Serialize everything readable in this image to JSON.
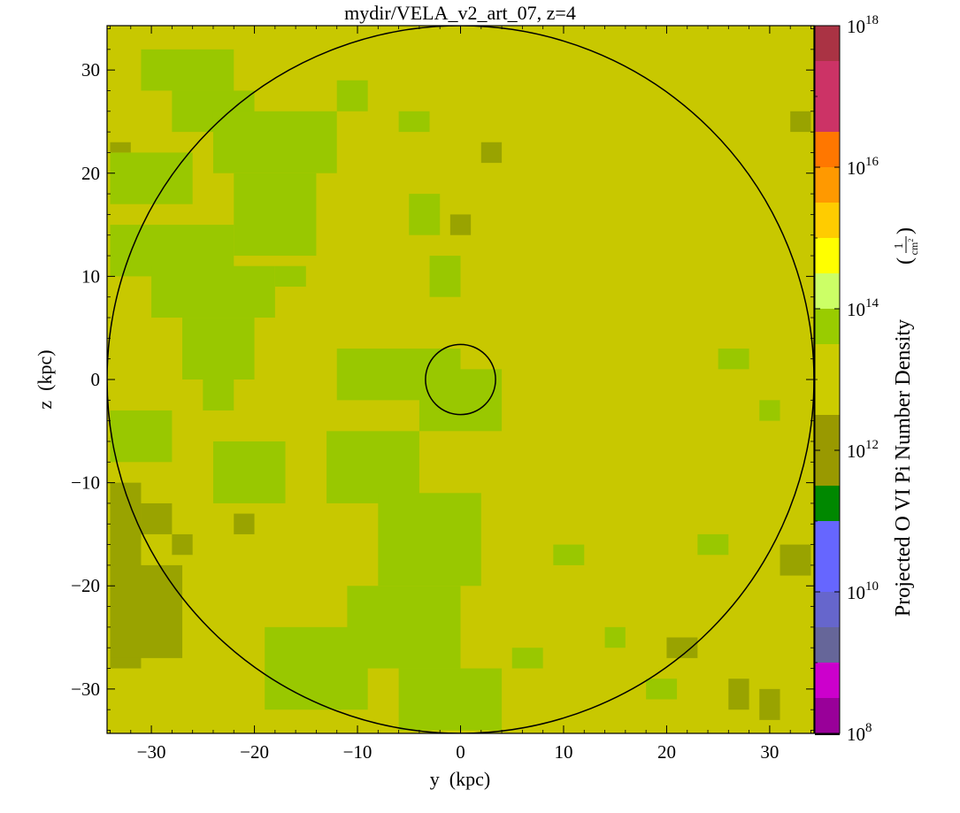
{
  "chart_data": {
    "type": "heatmap",
    "title": "mydir/VELA_v2_art_07, z=4",
    "xlabel": "y  (kpc)",
    "ylabel": "z  (kpc)",
    "xlim": [
      -34.3,
      34.3
    ],
    "ylim": [
      -34.3,
      34.3
    ],
    "x_ticks": [
      -30,
      -20,
      -10,
      0,
      10,
      20,
      30
    ],
    "y_ticks": [
      -30,
      -20,
      -10,
      0,
      10,
      20,
      30
    ],
    "x_tick_labels": [
      "−30",
      "−20",
      "−10",
      "0",
      "10",
      "20",
      "30"
    ],
    "y_tick_labels": [
      "−30",
      "−20",
      "−10",
      "0",
      "10",
      "20",
      "30"
    ],
    "circles_kpc": [
      {
        "center": [
          0,
          0
        ],
        "radius": 34.3
      },
      {
        "center": [
          0,
          0
        ],
        "radius": 3.4
      }
    ],
    "colorbar": {
      "label": "Projected O VI Pi Number Density",
      "unit_num": "1",
      "unit_den": "cm",
      "unit_den_exp": "2",
      "scale": "log",
      "range_exp": [
        8,
        18
      ],
      "tick_base": "10",
      "tick_exps": [
        "8",
        "10",
        "12",
        "14",
        "16",
        "18"
      ],
      "bands": [
        {
          "lo": 7.9,
          "hi": 8.0,
          "color": "#000000"
        },
        {
          "lo": 8.0,
          "hi": 8.5,
          "color": "#990099"
        },
        {
          "lo": 8.5,
          "hi": 9.0,
          "color": "#cc00cc"
        },
        {
          "lo": 9.0,
          "hi": 9.5,
          "color": "#666699"
        },
        {
          "lo": 9.5,
          "hi": 10.0,
          "color": "#6666cc"
        },
        {
          "lo": 10.0,
          "hi": 10.5,
          "color": "#6666ff"
        },
        {
          "lo": 10.5,
          "hi": 11.0,
          "color": "#6666ff"
        },
        {
          "lo": 11.0,
          "hi": 11.5,
          "color": "#008800"
        },
        {
          "lo": 11.5,
          "hi": 12.0,
          "color": "#999900"
        },
        {
          "lo": 12.0,
          "hi": 12.5,
          "color": "#999900"
        },
        {
          "lo": 12.5,
          "hi": 13.5,
          "color": "#cccc00"
        },
        {
          "lo": 13.5,
          "hi": 14.0,
          "color": "#99cc00"
        },
        {
          "lo": 14.0,
          "hi": 14.5,
          "color": "#ccff66"
        },
        {
          "lo": 14.5,
          "hi": 15.0,
          "color": "#ffff00"
        },
        {
          "lo": 15.0,
          "hi": 15.5,
          "color": "#ffcc00"
        },
        {
          "lo": 15.5,
          "hi": 16.0,
          "color": "#ff9900"
        },
        {
          "lo": 16.0,
          "hi": 16.5,
          "color": "#ff7700"
        },
        {
          "lo": 16.5,
          "hi": 17.0,
          "color": "#cc3366"
        },
        {
          "lo": 17.0,
          "hi": 17.5,
          "color": "#cc3366"
        },
        {
          "lo": 17.5,
          "hi": 18.0,
          "color": "#aa3344"
        },
        {
          "lo": 18.0,
          "hi": 18.1,
          "color": "#ffffff"
        }
      ]
    },
    "map": {
      "background_level_exp": 13.0,
      "background_color": "#c8c800",
      "patch_colors": {
        "high": "#99c800",
        "low": "#99a300"
      },
      "patches_kpc": [
        {
          "level": "high",
          "y": [
            -31,
            -22
          ],
          "z": [
            28,
            32
          ]
        },
        {
          "level": "high",
          "y": [
            -28,
            -20
          ],
          "z": [
            24,
            28
          ]
        },
        {
          "level": "high",
          "y": [
            -24,
            -12
          ],
          "z": [
            20,
            26
          ]
        },
        {
          "level": "high",
          "y": [
            -34,
            -26
          ],
          "z": [
            17,
            22
          ]
        },
        {
          "level": "high",
          "y": [
            -22,
            -14
          ],
          "z": [
            12,
            20
          ]
        },
        {
          "level": "high",
          "y": [
            -34,
            -22
          ],
          "z": [
            10,
            15
          ]
        },
        {
          "level": "high",
          "y": [
            -30,
            -18
          ],
          "z": [
            6,
            11
          ]
        },
        {
          "level": "high",
          "y": [
            -27,
            -20
          ],
          "z": [
            0,
            6
          ]
        },
        {
          "level": "high",
          "y": [
            -34,
            -28
          ],
          "z": [
            -8,
            -3
          ]
        },
        {
          "level": "high",
          "y": [
            -24,
            -17
          ],
          "z": [
            -12,
            -6
          ]
        },
        {
          "level": "high",
          "y": [
            -13,
            -4
          ],
          "z": [
            -12,
            -5
          ]
        },
        {
          "level": "high",
          "y": [
            -8,
            2
          ],
          "z": [
            -20,
            -11
          ]
        },
        {
          "level": "high",
          "y": [
            -11,
            0
          ],
          "z": [
            -28,
            -20
          ]
        },
        {
          "level": "high",
          "y": [
            -19,
            -9
          ],
          "z": [
            -32,
            -24
          ]
        },
        {
          "level": "high",
          "y": [
            -6,
            4
          ],
          "z": [
            -34,
            -28
          ]
        },
        {
          "level": "high",
          "y": [
            -12,
            0
          ],
          "z": [
            -2,
            3
          ]
        },
        {
          "level": "high",
          "y": [
            -4,
            4
          ],
          "z": [
            -5,
            1
          ]
        },
        {
          "level": "high",
          "y": [
            -3,
            0
          ],
          "z": [
            8,
            12
          ]
        },
        {
          "level": "high",
          "y": [
            -5,
            -2
          ],
          "z": [
            14,
            18
          ]
        },
        {
          "level": "high",
          "y": [
            -6,
            -3
          ],
          "z": [
            24,
            26
          ]
        },
        {
          "level": "high",
          "y": [
            -12,
            -9
          ],
          "z": [
            26,
            29
          ]
        },
        {
          "level": "high",
          "y": [
            18,
            21
          ],
          "z": [
            -31,
            -29
          ]
        },
        {
          "level": "high",
          "y": [
            25,
            28
          ],
          "z": [
            1,
            3
          ]
        },
        {
          "level": "high",
          "y": [
            29,
            31
          ],
          "z": [
            -4,
            -2
          ]
        },
        {
          "level": "high",
          "y": [
            23,
            26
          ],
          "z": [
            -17,
            -15
          ]
        },
        {
          "level": "high",
          "y": [
            -18,
            -15
          ],
          "z": [
            9,
            11
          ]
        },
        {
          "level": "high",
          "y": [
            5,
            8
          ],
          "z": [
            -28,
            -26
          ]
        },
        {
          "level": "high",
          "y": [
            9,
            12
          ],
          "z": [
            -18,
            -16
          ]
        },
        {
          "level": "high",
          "y": [
            14,
            16
          ],
          "z": [
            -26,
            -24
          ]
        },
        {
          "level": "high",
          "y": [
            -30,
            -27
          ],
          "z": [
            -26,
            -22
          ]
        },
        {
          "level": "high",
          "y": [
            -25,
            -22
          ],
          "z": [
            -3,
            0
          ]
        },
        {
          "level": "low",
          "y": [
            -34,
            -31
          ],
          "z": [
            -28,
            -10
          ]
        },
        {
          "level": "low",
          "y": [
            -34,
            -27
          ],
          "z": [
            -27,
            -18
          ]
        },
        {
          "level": "low",
          "y": [
            -31,
            -28
          ],
          "z": [
            -15,
            -12
          ]
        },
        {
          "level": "low",
          "y": [
            -28,
            -26
          ],
          "z": [
            -17,
            -15
          ]
        },
        {
          "level": "low",
          "y": [
            -22,
            -20
          ],
          "z": [
            -15,
            -13
          ]
        },
        {
          "level": "low",
          "y": [
            2,
            4
          ],
          "z": [
            21,
            23
          ]
        },
        {
          "level": "low",
          "y": [
            -1,
            1
          ],
          "z": [
            14,
            16
          ]
        },
        {
          "level": "low",
          "y": [
            20,
            23
          ],
          "z": [
            -27,
            -25
          ]
        },
        {
          "level": "low",
          "y": [
            26,
            28
          ],
          "z": [
            -32,
            -29
          ]
        },
        {
          "level": "low",
          "y": [
            29,
            31
          ],
          "z": [
            -33,
            -30
          ]
        },
        {
          "level": "low",
          "y": [
            31,
            34
          ],
          "z": [
            -19,
            -16
          ]
        },
        {
          "level": "low",
          "y": [
            32,
            34
          ],
          "z": [
            24,
            26
          ]
        },
        {
          "level": "low",
          "y": [
            -34,
            -32
          ],
          "z": [
            22,
            23
          ]
        }
      ]
    }
  }
}
